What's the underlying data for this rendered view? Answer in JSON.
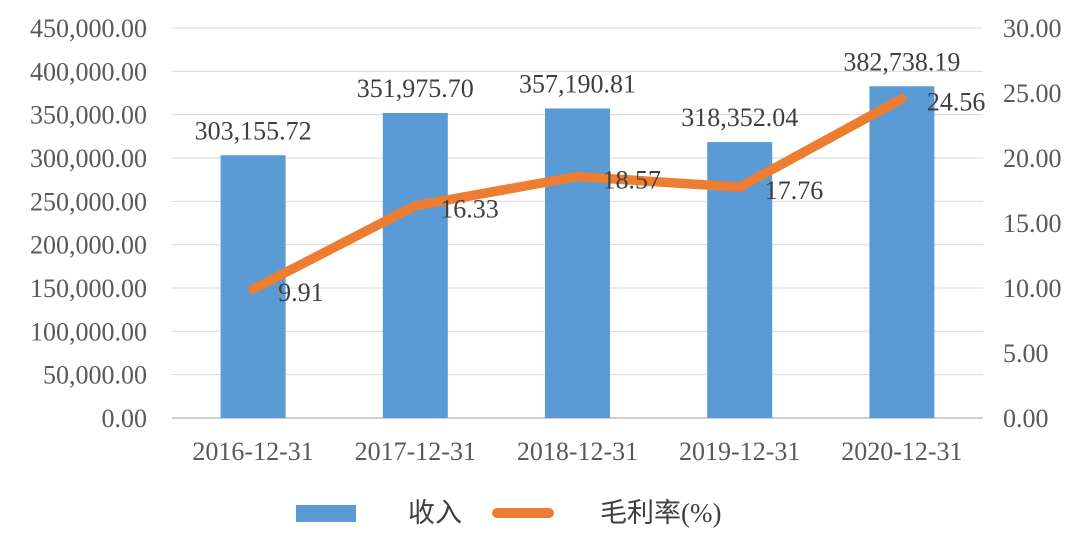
{
  "chart_data": {
    "type": "combo-bar-line",
    "categories": [
      "2016-12-31",
      "2017-12-31",
      "2018-12-31",
      "2019-12-31",
      "2020-12-31"
    ],
    "series": [
      {
        "name": "收入",
        "type": "bar",
        "color": "#5B9BD5",
        "axis": "left",
        "values": [
          303155.72,
          351975.7,
          357190.81,
          318352.04,
          382738.19
        ],
        "labels": [
          "303,155.72",
          "351,975.70",
          "357,190.81",
          "318,352.04",
          "382,738.19"
        ]
      },
      {
        "name": "毛利率(%)",
        "type": "line",
        "color": "#ED7D31",
        "axis": "right",
        "values": [
          9.91,
          16.33,
          18.57,
          17.76,
          24.56
        ],
        "labels": [
          "9.91",
          "16.33",
          "18.57",
          "17.76",
          "24.56"
        ]
      }
    ],
    "left_axis": {
      "min": 0,
      "max": 450000,
      "step": 50000,
      "tick_labels": [
        "0.00",
        "50,000.00",
        "100,000.00",
        "150,000.00",
        "200,000.00",
        "250,000.00",
        "300,000.00",
        "350,000.00",
        "400,000.00",
        "450,000.00"
      ]
    },
    "right_axis": {
      "min": 0,
      "max": 30,
      "step": 5,
      "tick_labels": [
        "0.00",
        "5.00",
        "10.00",
        "15.00",
        "20.00",
        "25.00",
        "30.00"
      ]
    },
    "grid": true,
    "legend_position": "bottom",
    "colors": {
      "gridline": "#D9D9D9",
      "axis_line": "#BFBFBF",
      "axis_text": "#595959",
      "label_text": "#3F3F3F",
      "background": "#FFFFFF"
    }
  }
}
